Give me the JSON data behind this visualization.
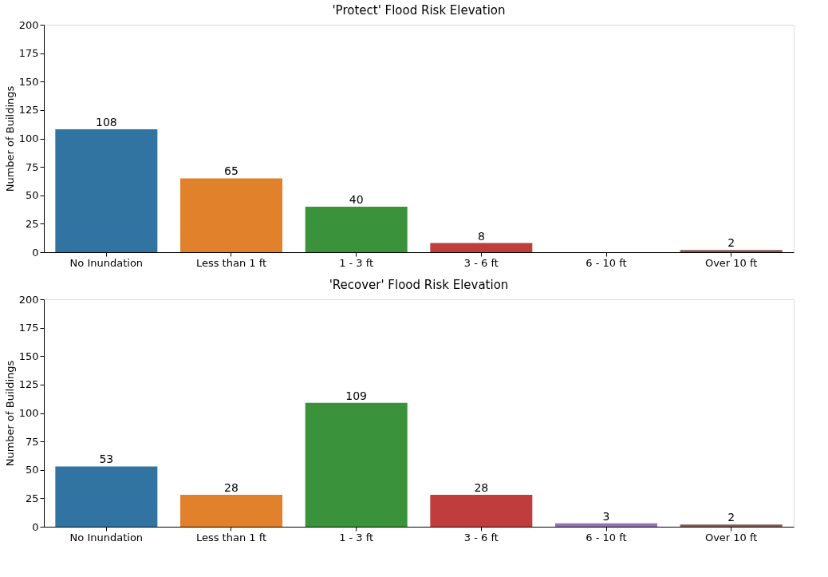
{
  "chart_data": [
    {
      "type": "bar",
      "title": "'Protect' Flood Risk Elevation",
      "ylabel": "Number of Buildings",
      "categories": [
        "No Inundation",
        "Less than 1 ft",
        "1 - 3 ft",
        "3 - 6 ft",
        "6 - 10 ft",
        "Over 10 ft"
      ],
      "values": [
        108,
        65,
        40,
        8,
        null,
        2
      ],
      "colors": [
        "#3274a1",
        "#e1812c",
        "#3a923a",
        "#c03d3e",
        "#9372b2",
        "#845b53"
      ],
      "ylim": [
        0,
        200
      ],
      "yticks": [
        0,
        25,
        50,
        75,
        100,
        125,
        150,
        175,
        200
      ],
      "data_labels": true,
      "grid": false
    },
    {
      "type": "bar",
      "title": "'Recover' Flood Risk Elevation",
      "ylabel": "Number of Buildings",
      "categories": [
        "No Inundation",
        "Less than 1 ft",
        "1 - 3 ft",
        "3 - 6 ft",
        "6 - 10 ft",
        "Over 10 ft"
      ],
      "values": [
        53,
        28,
        109,
        28,
        3,
        2
      ],
      "colors": [
        "#3274a1",
        "#e1812c",
        "#3a923a",
        "#c03d3e",
        "#9372b2",
        "#845b53"
      ],
      "ylim": [
        0,
        200
      ],
      "yticks": [
        0,
        25,
        50,
        75,
        100,
        125,
        150,
        175,
        200
      ],
      "data_labels": true,
      "grid": false
    }
  ]
}
